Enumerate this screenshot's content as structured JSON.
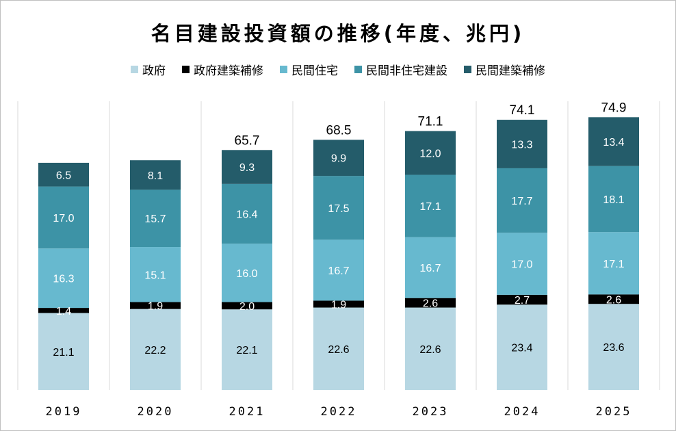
{
  "chart_data": {
    "type": "stacked-bar",
    "title": "名目建設投資額の推移(年度、兆円)",
    "categories": [
      "2019",
      "2020",
      "2021",
      "2022",
      "2023",
      "2024",
      "2025"
    ],
    "series": [
      {
        "name": "政府",
        "color": "#b7d7e3",
        "label_color": "#000000",
        "values": [
          21.1,
          22.2,
          22.1,
          22.6,
          22.6,
          23.4,
          23.6
        ]
      },
      {
        "name": "政府建築補修",
        "color": "#000000",
        "label_color": "#ffffff",
        "values": [
          1.4,
          1.9,
          2.0,
          1.9,
          2.6,
          2.7,
          2.6
        ]
      },
      {
        "name": "民間住宅",
        "color": "#67b9cf",
        "label_color": "#ffffff",
        "values": [
          16.3,
          15.1,
          16.0,
          16.7,
          16.7,
          17.0,
          17.1
        ]
      },
      {
        "name": "民間非住宅建設",
        "color": "#3d93a6",
        "label_color": "#ffffff",
        "values": [
          17.0,
          15.7,
          16.4,
          17.5,
          17.1,
          17.7,
          18.1
        ]
      },
      {
        "name": "民間建築補修",
        "color": "#245c6a",
        "label_color": "#ffffff",
        "values": [
          6.5,
          8.1,
          9.3,
          9.9,
          12.0,
          13.3,
          13.4
        ]
      }
    ],
    "totals": [
      "",
      "",
      "65.7",
      "68.5",
      "71.1",
      "74.1",
      "74.9"
    ],
    "legend_position": "top",
    "grid": false,
    "ylim": [
      0,
      85
    ]
  }
}
